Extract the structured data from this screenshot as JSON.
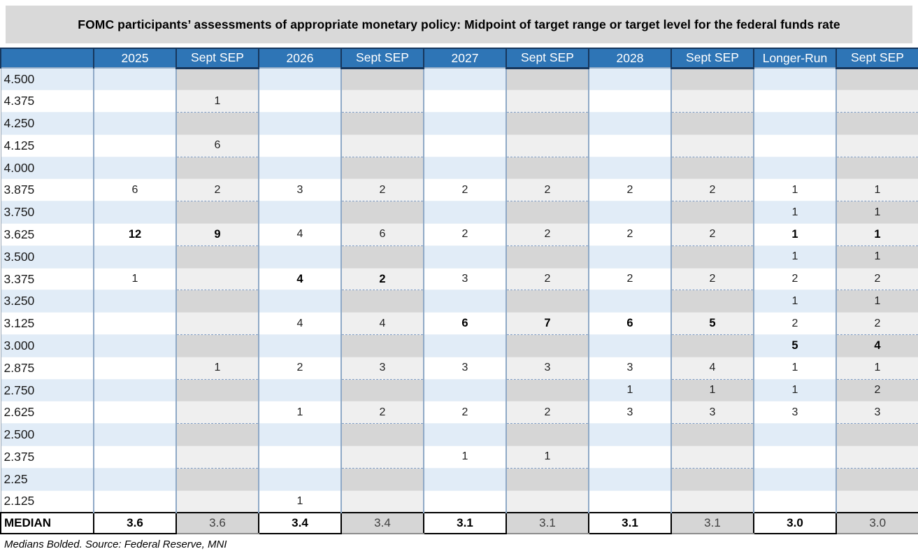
{
  "title": "FOMC participants’ assessments of appropriate monetary policy: Midpoint of target range or target level for the federal funds rate",
  "footer": "Medians Bolded. Source: Federal Reserve, MNI",
  "colors": {
    "header_bg": "#2e75b6",
    "header_text": "#ffffff",
    "row_blue": "#e1ecf7",
    "sep_gray_dark": "#d6d6d6",
    "sep_gray_light": "#efefef",
    "title_bar_bg": "#d9d9d9",
    "column_border": "#8fa9c6",
    "median_border": "#000000"
  },
  "chart_data": {
    "type": "table",
    "title": "FOMC participants’ assessments of appropriate monetary policy: Midpoint of target range or target level for the federal funds rate",
    "columns": [
      "",
      "2025",
      "Sept SEP",
      "2026",
      "Sept SEP",
      "2027",
      "Sept SEP",
      "2028",
      "Sept SEP",
      "Longer-Run",
      "Sept SEP"
    ],
    "rows": [
      {
        "rate": "4.500",
        "values": [
          "",
          "",
          "",
          "",
          "",
          "",
          "",
          "",
          "",
          ""
        ]
      },
      {
        "rate": "4.375",
        "values": [
          "",
          "1",
          "",
          "",
          "",
          "",
          "",
          "",
          "",
          ""
        ]
      },
      {
        "rate": "4.250",
        "values": [
          "",
          "",
          "",
          "",
          "",
          "",
          "",
          "",
          "",
          ""
        ]
      },
      {
        "rate": "4.125",
        "values": [
          "",
          "6",
          "",
          "",
          "",
          "",
          "",
          "",
          "",
          ""
        ]
      },
      {
        "rate": "4.000",
        "values": [
          "",
          "",
          "",
          "",
          "",
          "",
          "",
          "",
          "",
          ""
        ]
      },
      {
        "rate": "3.875",
        "values": [
          "6",
          "2",
          "3",
          "2",
          "2",
          "2",
          "2",
          "2",
          "1",
          "1"
        ]
      },
      {
        "rate": "3.750",
        "values": [
          "",
          "",
          "",
          "",
          "",
          "",
          "",
          "",
          "1",
          "1"
        ]
      },
      {
        "rate": "3.625",
        "values": [
          "12",
          "9",
          "4",
          "6",
          "2",
          "2",
          "2",
          "2",
          "1",
          "1"
        ]
      },
      {
        "rate": "3.500",
        "values": [
          "",
          "",
          "",
          "",
          "",
          "",
          "",
          "",
          "1",
          "1"
        ]
      },
      {
        "rate": "3.375",
        "values": [
          "1",
          "",
          "4",
          "2",
          "3",
          "2",
          "2",
          "2",
          "2",
          "2"
        ]
      },
      {
        "rate": "3.250",
        "values": [
          "",
          "",
          "",
          "",
          "",
          "",
          "",
          "",
          "1",
          "1"
        ]
      },
      {
        "rate": "3.125",
        "values": [
          "",
          "",
          "4",
          "4",
          "6",
          "7",
          "6",
          "5",
          "2",
          "2"
        ]
      },
      {
        "rate": "3.000",
        "values": [
          "",
          "",
          "",
          "",
          "",
          "",
          "",
          "",
          "5",
          "4"
        ]
      },
      {
        "rate": "2.875",
        "values": [
          "",
          "1",
          "2",
          "3",
          "3",
          "3",
          "3",
          "4",
          "1",
          "1"
        ]
      },
      {
        "rate": "2.750",
        "values": [
          "",
          "",
          "",
          "",
          "",
          "",
          "1",
          "1",
          "1",
          "2"
        ]
      },
      {
        "rate": "2.625",
        "values": [
          "",
          "",
          "1",
          "2",
          "2",
          "2",
          "3",
          "3",
          "3",
          "3"
        ]
      },
      {
        "rate": "2.500",
        "values": [
          "",
          "",
          "",
          "",
          "",
          "",
          "",
          "",
          "",
          ""
        ]
      },
      {
        "rate": "2.375",
        "values": [
          "",
          "",
          "",
          "",
          "1",
          "1",
          "",
          "",
          "",
          ""
        ]
      },
      {
        "rate": "2.25",
        "values": [
          "",
          "",
          "",
          "",
          "",
          "",
          "",
          "",
          "",
          ""
        ]
      },
      {
        "rate": "2.125",
        "values": [
          "",
          "",
          "1",
          "",
          "",
          "",
          "",
          "",
          "",
          ""
        ]
      }
    ],
    "bold_cells": [
      [
        7,
        0
      ],
      [
        7,
        1
      ],
      [
        7,
        8
      ],
      [
        7,
        9
      ],
      [
        9,
        2
      ],
      [
        9,
        3
      ],
      [
        11,
        4
      ],
      [
        11,
        5
      ],
      [
        11,
        6
      ],
      [
        11,
        7
      ],
      [
        12,
        8
      ],
      [
        12,
        9
      ]
    ],
    "median": {
      "label": "MEDIAN",
      "values": [
        "3.6",
        "3.6",
        "3.4",
        "3.4",
        "3.1",
        "3.1",
        "3.1",
        "3.1",
        "3.0",
        "3.0"
      ]
    },
    "notes": "Sept SEP columns are shaded gray comparison columns; medians bolded."
  }
}
